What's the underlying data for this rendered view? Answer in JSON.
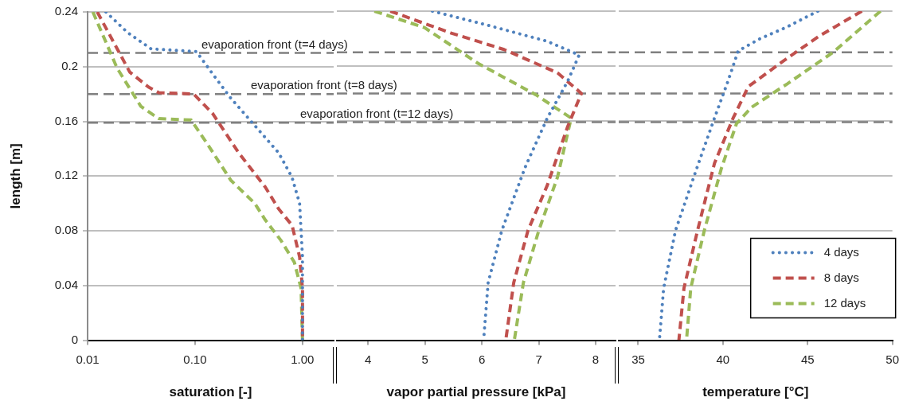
{
  "chart_data": [
    {
      "type": "line",
      "xlabel": "saturation [-]",
      "ylabel": "length [m]",
      "log": "x",
      "xlim": [
        0.01,
        1.95
      ],
      "xticks": [
        0.01,
        {
          "value": 0.1,
          "label": "0.10"
        },
        {
          "value": 1,
          "label": "1.00"
        }
      ],
      "ylim": [
        0,
        0.24
      ],
      "yticks": [
        0,
        0.04,
        0.08,
        0.12,
        0.16,
        0.2,
        0.24
      ],
      "grid": "y",
      "series": [
        {
          "color": "#4f81bd",
          "line_style": "dotted",
          "x": [
            0.0148,
            0.0235,
            0.039,
            0.103,
            0.145,
            0.215,
            0.32,
            0.6,
            0.8,
            0.94,
            1.0,
            1.0
          ],
          "values": [
            0.24,
            0.225,
            0.213,
            0.211,
            0.195,
            0.177,
            0.1615,
            0.137,
            0.119,
            0.1,
            0.061,
            0
          ]
        },
        {
          "color": "#c0504d",
          "line_style": "dashed",
          "x": [
            0.0123,
            0.0247,
            0.037,
            0.046,
            0.097,
            0.145,
            0.255,
            0.45,
            0.6,
            0.8,
            0.94,
            1.0,
            1.0
          ],
          "values": [
            0.24,
            0.196,
            0.185,
            0.181,
            0.18,
            0.166,
            0.137,
            0.112,
            0.096,
            0.084,
            0.061,
            0.038,
            0
          ]
        },
        {
          "color": "#9bbb59",
          "line_style": "dashed",
          "x": [
            0.0112,
            0.0188,
            0.0313,
            0.046,
            0.092,
            0.129,
            0.215,
            0.36,
            0.45,
            0.63,
            0.84,
            0.97,
            1.0
          ],
          "values": [
            0.24,
            0.199,
            0.171,
            0.162,
            0.161,
            0.144,
            0.117,
            0.1,
            0.088,
            0.073,
            0.057,
            0.038,
            0
          ]
        }
      ],
      "ref_lines": [
        {
          "axis": "y",
          "value": 0.21,
          "color": "#808080",
          "line_style": "dashed"
        },
        {
          "axis": "y",
          "value": 0.18,
          "color": "#808080",
          "line_style": "dashed"
        },
        {
          "axis": "y",
          "value": 0.159,
          "color": "#808080",
          "line_style": "dashed"
        }
      ],
      "annotations": [
        "evaporation front (t=4 days)",
        "evaporation front (t=8 days)",
        "evaporation front (t=12 days)"
      ]
    },
    {
      "type": "line",
      "xlabel": "vapor partial pressure [kPa]",
      "xlim": [
        3.45,
        8.35
      ],
      "xticks": [
        4,
        5,
        6,
        7,
        8
      ],
      "ylim": [
        0,
        0.24
      ],
      "yticks": [
        0,
        0.04,
        0.08,
        0.12,
        0.16,
        0.2,
        0.24
      ],
      "grid": "y",
      "tick_labels": "x",
      "series": [
        {
          "color": "#4f81bd",
          "line_style": "dotted",
          "x": [
            5.13,
            6.17,
            7.15,
            7.71,
            7.51,
            7.15,
            6.77,
            6.67,
            6.35,
            6.11,
            6.03
          ],
          "values": [
            0.24,
            0.229,
            0.218,
            0.208,
            0.189,
            0.162,
            0.127,
            0.116,
            0.08,
            0.042,
            0
          ]
        },
        {
          "color": "#c0504d",
          "line_style": "dashed",
          "x": [
            4.39,
            5.46,
            6.39,
            7.33,
            7.75,
            7.51,
            7.15,
            6.81,
            6.56,
            6.42
          ],
          "values": [
            0.24,
            0.224,
            0.212,
            0.195,
            0.18,
            0.156,
            0.113,
            0.08,
            0.042,
            0
          ]
        },
        {
          "color": "#9bbb59",
          "line_style": "dashed",
          "x": [
            4.11,
            4.99,
            5.93,
            6.95,
            7.57,
            7.33,
            7.0,
            6.73,
            6.57
          ],
          "values": [
            0.24,
            0.228,
            0.202,
            0.179,
            0.162,
            0.119,
            0.08,
            0.042,
            0
          ]
        }
      ],
      "ref_lines": [
        {
          "axis": "y",
          "value": 0.21,
          "color": "#808080",
          "line_style": "dashed"
        },
        {
          "axis": "y",
          "value": 0.18,
          "color": "#808080",
          "line_style": "dashed"
        },
        {
          "axis": "y",
          "value": 0.159,
          "color": "#808080",
          "line_style": "dashed"
        }
      ]
    },
    {
      "type": "line",
      "xlabel": "temperature [°C]",
      "xlim": [
        33.85,
        50
      ],
      "xticks": [
        35,
        40,
        45,
        50
      ],
      "ylim": [
        0,
        0.24
      ],
      "yticks": [
        0,
        0.04,
        0.08,
        0.12,
        0.16,
        0.2,
        0.24
      ],
      "grid": "y",
      "tick_labels": "x",
      "legend": "bottom right",
      "series": [
        {
          "name": "4 days",
          "color": "#4f81bd",
          "line_style": "dotted",
          "x": [
            45.6,
            43.7,
            42.2,
            40.9,
            40.3,
            39.5,
            38.5,
            37.2,
            36.5,
            36.25
          ],
          "values": [
            0.24,
            0.228,
            0.22,
            0.211,
            0.189,
            0.162,
            0.127,
            0.08,
            0.038,
            0
          ]
        },
        {
          "name": "8 days",
          "color": "#c0504d",
          "line_style": "dashed",
          "x": [
            48.2,
            45.7,
            43.6,
            41.5,
            40.6,
            39.5,
            38.5,
            37.7,
            37.4
          ],
          "values": [
            0.24,
            0.222,
            0.204,
            0.185,
            0.162,
            0.129,
            0.08,
            0.038,
            0
          ]
        },
        {
          "name": "12 days",
          "color": "#9bbb59",
          "line_style": "dashed",
          "x": [
            49.3,
            46.5,
            43.8,
            41.7,
            40.8,
            39.9,
            38.9,
            38.1,
            37.85
          ],
          "values": [
            0.24,
            0.21,
            0.187,
            0.17,
            0.158,
            0.125,
            0.08,
            0.038,
            0
          ]
        }
      ],
      "ref_lines": [
        {
          "axis": "y",
          "value": 0.21,
          "color": "#808080",
          "line_style": "dashed"
        },
        {
          "axis": "y",
          "value": 0.18,
          "color": "#808080",
          "line_style": "dashed"
        },
        {
          "axis": "y",
          "value": 0.159,
          "color": "#808080",
          "line_style": "dashed"
        }
      ]
    }
  ]
}
